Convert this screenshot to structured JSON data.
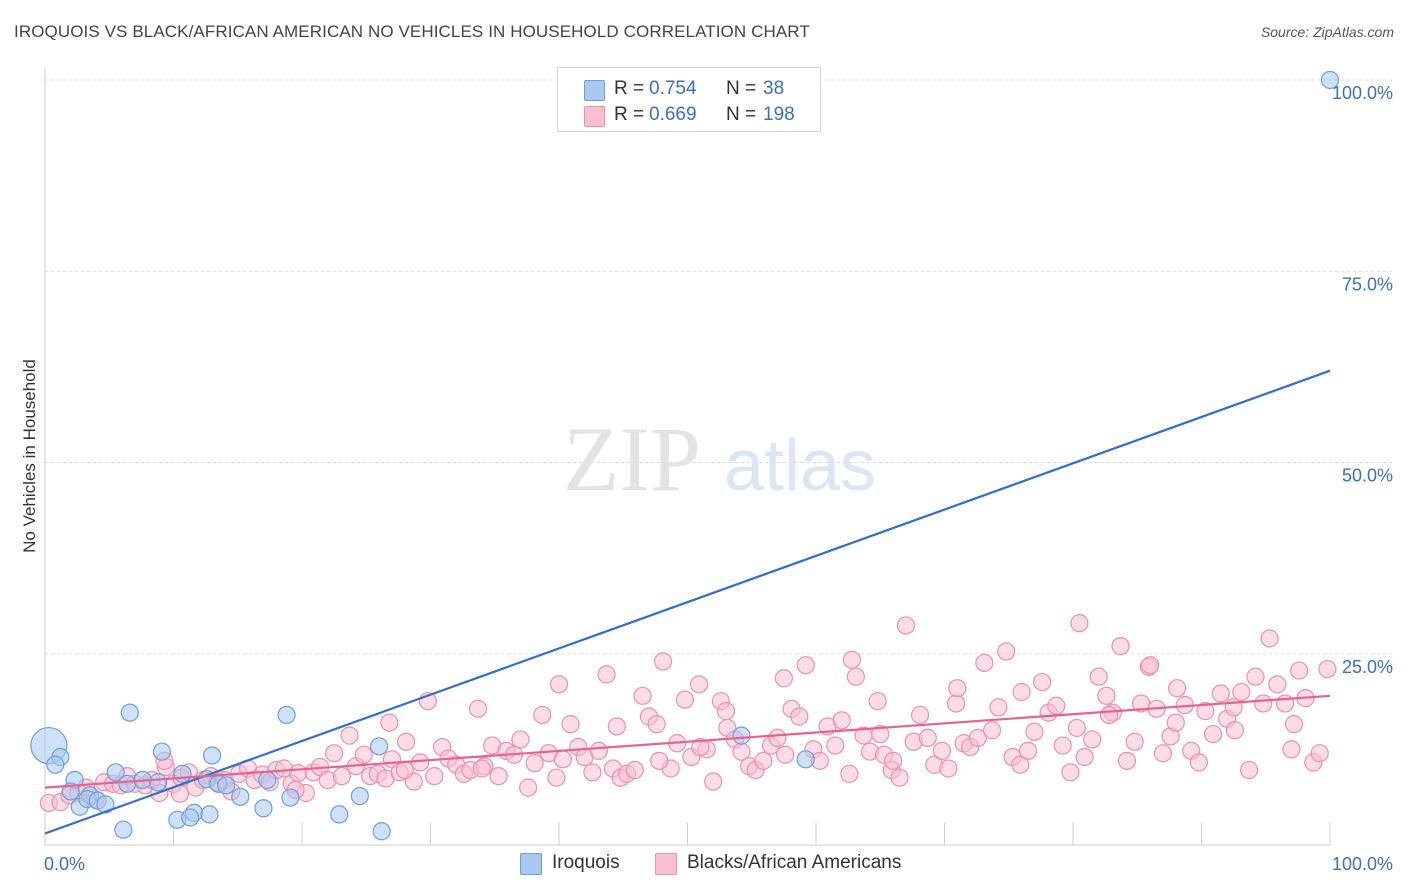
{
  "title": "IROQUOIS VS BLACK/AFRICAN AMERICAN NO VEHICLES IN HOUSEHOLD CORRELATION CHART",
  "source": "Source: ZipAtlas.com",
  "watermark": {
    "zip": "ZIP",
    "atlas": "atlas"
  },
  "legend": {
    "rows": [
      {
        "r_label": "R =",
        "r_value": "0.754",
        "n_label": "N =",
        "n_value": "38",
        "color": "#a8c8f0",
        "stroke": "#6d9fdc"
      },
      {
        "r_label": "R =",
        "r_value": "0.669",
        "n_label": "N =",
        "n_value": "198",
        "color": "#f9bfd1",
        "stroke": "#ee8fb0"
      }
    ]
  },
  "bottom_legend": [
    {
      "label": "Iroquois",
      "color": "#a8c8f0",
      "stroke": "#6d9fdc"
    },
    {
      "label": "Blacks/African Americans",
      "color": "#f9bfd1",
      "stroke": "#ee8fb0"
    }
  ],
  "chart_data": {
    "type": "scatter",
    "title": "IROQUOIS VS BLACK/AFRICAN AMERICAN NO VEHICLES IN HOUSEHOLD CORRELATION CHART",
    "xlabel": "",
    "ylabel": "No Vehicles in Household",
    "xlim": [
      0,
      100
    ],
    "ylim": [
      0,
      100
    ],
    "x_tick_labels": [
      "0.0%",
      "100.0%"
    ],
    "y_tick_labels": [
      {
        "value": 25,
        "label": "25.0%"
      },
      {
        "value": 50,
        "label": "50.0%"
      },
      {
        "value": 75,
        "label": "75.0%"
      },
      {
        "value": 100,
        "label": "100.0%"
      }
    ],
    "grid": true,
    "legend_position": "top-center",
    "series": [
      {
        "name": "Iroquois",
        "color": "#6d9fdc",
        "fill": "#a8c8f0",
        "line_color": "#2f6fd0",
        "trend": [
          [
            0,
            1.5
          ],
          [
            100,
            62
          ]
        ],
        "points": [
          [
            0.3,
            13.0
          ],
          [
            1.2,
            11.5
          ],
          [
            0.8,
            10.5
          ],
          [
            2.3,
            8.5
          ],
          [
            2.0,
            7.0
          ],
          [
            2.7,
            5.0
          ],
          [
            3.5,
            6.5
          ],
          [
            3.3,
            6.0
          ],
          [
            4.1,
            5.8
          ],
          [
            4.7,
            5.3
          ],
          [
            5.5,
            9.5
          ],
          [
            6.4,
            8.0
          ],
          [
            7.6,
            8.5
          ],
          [
            8.8,
            8.2
          ],
          [
            6.1,
            2.0
          ],
          [
            10.3,
            3.3
          ],
          [
            11.6,
            4.2
          ],
          [
            9.1,
            12.2
          ],
          [
            10.7,
            9.3
          ],
          [
            12.6,
            8.6
          ],
          [
            13.5,
            8.0
          ],
          [
            14.1,
            7.8
          ],
          [
            15.2,
            6.3
          ],
          [
            17.0,
            4.8
          ],
          [
            17.3,
            8.5
          ],
          [
            11.3,
            3.6
          ],
          [
            12.8,
            4.0
          ],
          [
            19.1,
            6.2
          ],
          [
            18.8,
            17.0
          ],
          [
            22.9,
            4.0
          ],
          [
            24.5,
            6.4
          ],
          [
            26.0,
            12.9
          ],
          [
            26.2,
            1.8
          ],
          [
            13.0,
            11.7
          ],
          [
            6.6,
            17.3
          ],
          [
            54.2,
            14.3
          ],
          [
            59.2,
            11.2
          ],
          [
            100.0,
            100.0
          ]
        ]
      },
      {
        "name": "Blacks/African Americans",
        "color": "#ee8fb0",
        "fill": "#f9bfd1",
        "line_color": "#e8628f",
        "trend": [
          [
            0,
            7.5
          ],
          [
            100,
            19.5
          ]
        ],
        "points": [
          [
            0.3,
            5.5
          ],
          [
            1.2,
            5.6
          ],
          [
            1.9,
            6.5
          ],
          [
            2.6,
            6.8
          ],
          [
            3.2,
            7.5
          ],
          [
            3.9,
            6.0
          ],
          [
            4.6,
            8.2
          ],
          [
            5.3,
            8.0
          ],
          [
            5.9,
            7.8
          ],
          [
            6.4,
            9.0
          ],
          [
            7.0,
            8.0
          ],
          [
            7.8,
            7.8
          ],
          [
            8.3,
            8.5
          ],
          [
            8.9,
            6.8
          ],
          [
            9.4,
            10.2
          ],
          [
            10.0,
            8.0
          ],
          [
            10.6,
            8.8
          ],
          [
            11.2,
            9.5
          ],
          [
            11.7,
            7.5
          ],
          [
            12.3,
            8.5
          ],
          [
            12.9,
            9.0
          ],
          [
            13.4,
            8.2
          ],
          [
            14.0,
            8.5
          ],
          [
            14.5,
            7.0
          ],
          [
            15.1,
            9.3
          ],
          [
            15.8,
            10.0
          ],
          [
            16.3,
            8.5
          ],
          [
            16.9,
            9.2
          ],
          [
            17.5,
            8.2
          ],
          [
            18.0,
            9.8
          ],
          [
            18.6,
            10.0
          ],
          [
            19.2,
            8.0
          ],
          [
            19.7,
            9.4
          ],
          [
            20.3,
            6.8
          ],
          [
            20.9,
            9.5
          ],
          [
            21.4,
            10.2
          ],
          [
            22.0,
            8.5
          ],
          [
            22.5,
            12.0
          ],
          [
            23.1,
            9.0
          ],
          [
            23.7,
            14.3
          ],
          [
            24.2,
            10.3
          ],
          [
            24.8,
            11.8
          ],
          [
            25.3,
            9.0
          ],
          [
            25.9,
            9.3
          ],
          [
            26.5,
            8.7
          ],
          [
            27.0,
            11.2
          ],
          [
            27.6,
            9.5
          ],
          [
            28.1,
            13.5
          ],
          [
            28.7,
            8.3
          ],
          [
            29.2,
            10.8
          ],
          [
            29.8,
            18.8
          ],
          [
            30.3,
            9.0
          ],
          [
            30.9,
            12.8
          ],
          [
            31.4,
            11.3
          ],
          [
            32.0,
            10.5
          ],
          [
            32.6,
            9.3
          ],
          [
            33.1,
            9.8
          ],
          [
            33.7,
            17.8
          ],
          [
            34.2,
            10.3
          ],
          [
            34.8,
            13.0
          ],
          [
            35.3,
            9.0
          ],
          [
            35.9,
            12.3
          ],
          [
            36.5,
            11.8
          ],
          [
            37.0,
            13.8
          ],
          [
            37.6,
            7.5
          ],
          [
            38.1,
            10.7
          ],
          [
            38.7,
            17.0
          ],
          [
            39.2,
            12.0
          ],
          [
            39.8,
            8.8
          ],
          [
            40.3,
            11.2
          ],
          [
            40.9,
            15.8
          ],
          [
            41.5,
            12.8
          ],
          [
            42.0,
            11.5
          ],
          [
            42.6,
            9.5
          ],
          [
            43.1,
            12.3
          ],
          [
            43.7,
            22.3
          ],
          [
            44.2,
            10.0
          ],
          [
            44.8,
            8.8
          ],
          [
            45.3,
            9.3
          ],
          [
            45.9,
            9.8
          ],
          [
            46.5,
            19.5
          ],
          [
            47.0,
            16.8
          ],
          [
            47.6,
            15.8
          ],
          [
            48.1,
            24.0
          ],
          [
            48.7,
            10.0
          ],
          [
            49.2,
            13.3
          ],
          [
            49.8,
            19.0
          ],
          [
            50.3,
            11.5
          ],
          [
            50.9,
            21.0
          ],
          [
            51.5,
            12.5
          ],
          [
            52.0,
            8.3
          ],
          [
            52.6,
            18.8
          ],
          [
            53.1,
            15.3
          ],
          [
            53.7,
            13.8
          ],
          [
            54.2,
            12.2
          ],
          [
            54.8,
            10.3
          ],
          [
            55.3,
            9.8
          ],
          [
            55.9,
            11.0
          ],
          [
            56.5,
            13.0
          ],
          [
            57.0,
            14.0
          ],
          [
            57.6,
            11.8
          ],
          [
            58.1,
            17.8
          ],
          [
            58.7,
            16.8
          ],
          [
            59.2,
            23.5
          ],
          [
            59.8,
            12.5
          ],
          [
            60.3,
            11.0
          ],
          [
            60.9,
            15.5
          ],
          [
            61.5,
            13.0
          ],
          [
            62.0,
            16.3
          ],
          [
            62.6,
            9.3
          ],
          [
            63.1,
            22.0
          ],
          [
            63.7,
            14.3
          ],
          [
            64.2,
            12.2
          ],
          [
            64.8,
            18.8
          ],
          [
            65.3,
            11.8
          ],
          [
            65.9,
            9.8
          ],
          [
            66.5,
            8.8
          ],
          [
            67.0,
            28.7
          ],
          [
            67.6,
            13.5
          ],
          [
            68.1,
            17.0
          ],
          [
            68.7,
            14.0
          ],
          [
            69.2,
            10.5
          ],
          [
            69.8,
            12.3
          ],
          [
            70.3,
            10.0
          ],
          [
            70.9,
            18.5
          ],
          [
            71.5,
            13.3
          ],
          [
            72.0,
            12.8
          ],
          [
            72.6,
            14.0
          ],
          [
            73.1,
            23.8
          ],
          [
            73.7,
            15.0
          ],
          [
            74.2,
            18.0
          ],
          [
            74.8,
            25.3
          ],
          [
            75.3,
            11.5
          ],
          [
            75.9,
            10.5
          ],
          [
            76.5,
            12.3
          ],
          [
            77.0,
            14.8
          ],
          [
            77.6,
            21.3
          ],
          [
            78.1,
            17.3
          ],
          [
            78.7,
            18.2
          ],
          [
            79.2,
            13.0
          ],
          [
            79.8,
            9.5
          ],
          [
            80.3,
            15.3
          ],
          [
            80.9,
            11.5
          ],
          [
            81.5,
            13.8
          ],
          [
            82.0,
            22.0
          ],
          [
            82.6,
            19.5
          ],
          [
            83.1,
            17.3
          ],
          [
            83.7,
            26.0
          ],
          [
            84.2,
            11.0
          ],
          [
            84.8,
            13.5
          ],
          [
            85.3,
            18.5
          ],
          [
            85.9,
            23.3
          ],
          [
            86.5,
            17.8
          ],
          [
            87.0,
            12.0
          ],
          [
            87.6,
            14.2
          ],
          [
            88.1,
            20.5
          ],
          [
            88.7,
            18.3
          ],
          [
            89.2,
            12.3
          ],
          [
            89.8,
            10.8
          ],
          [
            90.3,
            17.5
          ],
          [
            90.9,
            14.5
          ],
          [
            91.5,
            19.8
          ],
          [
            92.0,
            16.5
          ],
          [
            92.6,
            15.0
          ],
          [
            93.1,
            20.0
          ],
          [
            93.7,
            9.8
          ],
          [
            94.2,
            22.0
          ],
          [
            94.8,
            18.5
          ],
          [
            95.3,
            27.0
          ],
          [
            95.9,
            21.0
          ],
          [
            96.5,
            18.5
          ],
          [
            97.0,
            12.5
          ],
          [
            97.6,
            22.8
          ],
          [
            98.1,
            19.2
          ],
          [
            98.7,
            10.8
          ],
          [
            99.2,
            12.0
          ],
          [
            99.8,
            23.0
          ],
          [
            57.5,
            21.8
          ],
          [
            62.8,
            24.2
          ],
          [
            40.0,
            21.0
          ],
          [
            44.5,
            15.5
          ],
          [
            51.0,
            12.8
          ],
          [
            65.0,
            14.5
          ],
          [
            76.0,
            20.0
          ],
          [
            80.5,
            29.0
          ],
          [
            88.0,
            16.0
          ],
          [
            92.5,
            18.0
          ],
          [
            71.0,
            20.5
          ],
          [
            34.0,
            10.0
          ],
          [
            28.0,
            9.8
          ],
          [
            19.5,
            7.2
          ],
          [
            10.5,
            6.7
          ],
          [
            9.3,
            11.0
          ],
          [
            53.0,
            17.5
          ],
          [
            66.0,
            11.0
          ],
          [
            82.8,
            17.0
          ],
          [
            97.2,
            15.8
          ],
          [
            47.8,
            11.0
          ],
          [
            86.0,
            23.5
          ],
          [
            26.8,
            16.0
          ]
        ]
      }
    ]
  }
}
